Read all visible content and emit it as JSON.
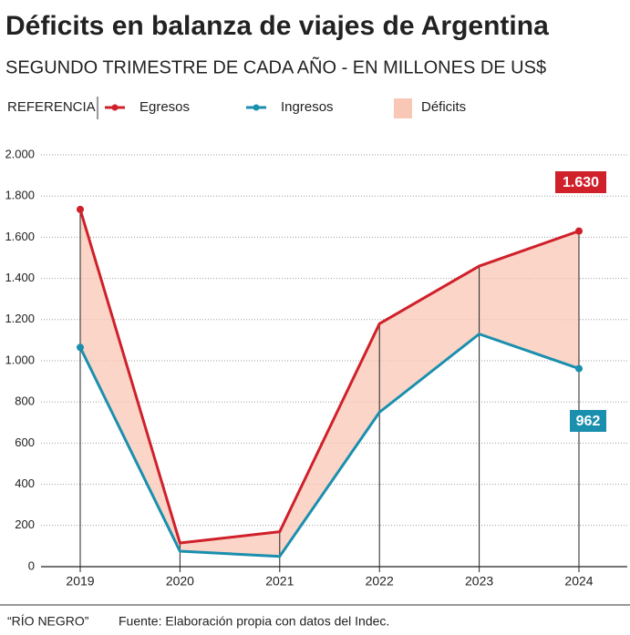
{
  "chart_data": {
    "type": "line",
    "title": "Déficits en balanza de viajes de Argentina",
    "subtitle": "SEGUNDO TRIMESTRE DE CADA AÑO - EN MILLONES DE US$",
    "legend_title": "REFERENCIA",
    "categories": [
      "2019",
      "2020",
      "2021",
      "2022",
      "2023",
      "2024"
    ],
    "series": [
      {
        "name": "Egresos",
        "color": "#d0202a",
        "values": [
          1735,
          115,
          170,
          1180,
          1460,
          1630
        ],
        "value_labels": [
          null,
          null,
          null,
          null,
          null,
          "1.630"
        ]
      },
      {
        "name": "Ingresos",
        "color": "#1a8fae",
        "values": [
          1065,
          75,
          50,
          750,
          1130,
          962
        ]
      }
    ],
    "fill_name": "Déficits",
    "fill_color": "#f8c7b5",
    "ylim": [
      0,
      2000
    ],
    "yticks": [
      0,
      200,
      400,
      600,
      800,
      {
        "value": 1000,
        "label": "1.000"
      },
      {
        "value": 1200,
        "label": "1.200"
      },
      {
        "value": 1400,
        "label": "1.400"
      },
      {
        "value": 1600,
        "label": "1.600"
      },
      {
        "value": 1800,
        "label": "1.800"
      },
      {
        "value": 2000,
        "label": "2.000"
      }
    ],
    "grid": true,
    "source_brand": "“RÍO NEGRO”",
    "source": "Fuente: Elaboración propia con datos del Indec."
  }
}
